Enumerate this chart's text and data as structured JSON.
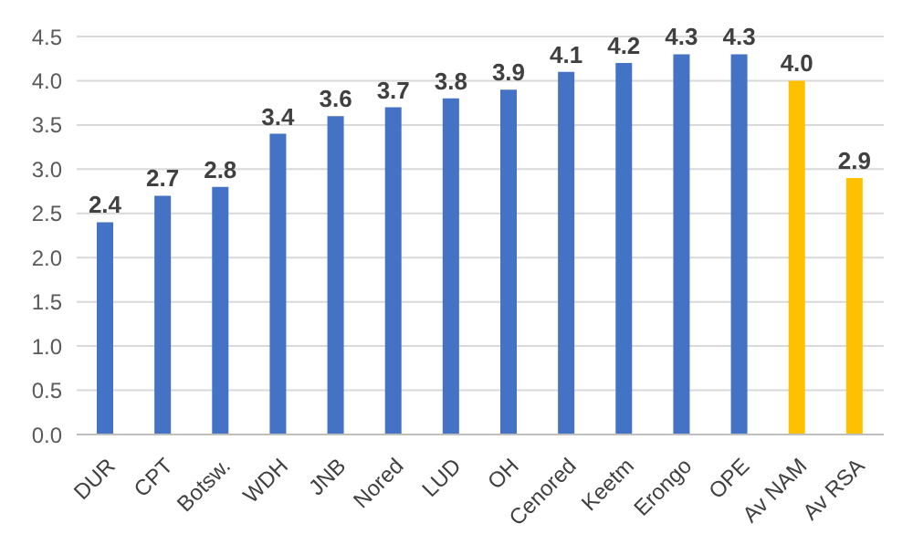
{
  "chart_data": {
    "type": "bar",
    "categories": [
      "DUR",
      "CPT",
      "Botsw.",
      "WDH",
      "JNB",
      "Nored",
      "LUD",
      "OH",
      "Cenored",
      "Keetm",
      "Erongo",
      "OPE",
      "Av NAM",
      "Av RSA"
    ],
    "values": [
      2.4,
      2.7,
      2.8,
      3.4,
      3.6,
      3.7,
      3.8,
      3.9,
      4.1,
      4.2,
      4.3,
      4.3,
      4.0,
      2.9
    ],
    "value_labels": [
      "2.4",
      "2.7",
      "2.8",
      "3.4",
      "3.6",
      "3.7",
      "3.8",
      "3.9",
      "4.1",
      "4.2",
      "4.3",
      "4.3",
      "4.0",
      "2.9"
    ],
    "colors": [
      "#4472c4",
      "#4472c4",
      "#4472c4",
      "#4472c4",
      "#4472c4",
      "#4472c4",
      "#4472c4",
      "#4472c4",
      "#4472c4",
      "#4472c4",
      "#4472c4",
      "#4472c4",
      "#ffc000",
      "#ffc000"
    ],
    "ylim": [
      0,
      4.5
    ],
    "yticks": [
      {
        "value": 0,
        "label": "0.0"
      },
      {
        "value": 0.5,
        "label": "0.5"
      },
      {
        "value": 1,
        "label": "1.0"
      },
      {
        "value": 1.5,
        "label": "1.5"
      },
      {
        "value": 2,
        "label": "2.0"
      },
      {
        "value": 2.5,
        "label": "2.5"
      },
      {
        "value": 3,
        "label": "3.0"
      },
      {
        "value": 3.5,
        "label": "3.5"
      },
      {
        "value": 4,
        "label": "4.0"
      },
      {
        "value": 4.5,
        "label": "4.5"
      }
    ],
    "grid": "y",
    "legend": false
  }
}
